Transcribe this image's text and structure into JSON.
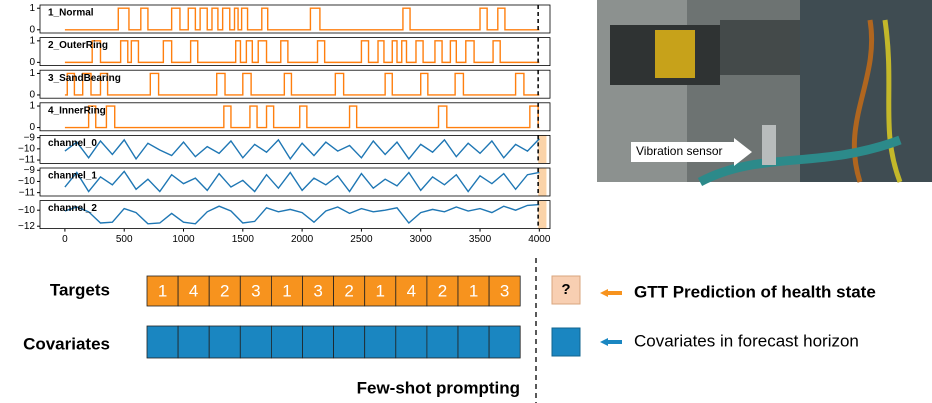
{
  "chart_data": [
    {
      "type": "line",
      "label": "1_Normal",
      "color": "#ff7f0e",
      "xlim": [
        -210,
        4090
      ],
      "ylim": [
        -0.15,
        1.15
      ],
      "yticks": [
        0,
        1
      ],
      "vline": 3990,
      "x": [
        0,
        450,
        450,
        540,
        540,
        640,
        640,
        700,
        700,
        900,
        900,
        970,
        970,
        1040,
        1040,
        1100,
        1100,
        1140,
        1140,
        1200,
        1200,
        1240,
        1240,
        1290,
        1290,
        1330,
        1330,
        1390,
        1390,
        1430,
        1430,
        1460,
        1460,
        1490,
        1490,
        1540,
        1540,
        1660,
        1660,
        1710,
        1710,
        2070,
        2070,
        2150,
        2150,
        2850,
        2850,
        2910,
        2910,
        3500,
        3500,
        3560,
        3560,
        3650,
        3650,
        3710,
        3710,
        4000
      ],
      "values": [
        0,
        0,
        1,
        1,
        0,
        0,
        1,
        1,
        0,
        0,
        1,
        1,
        0,
        0,
        1,
        1,
        0,
        0,
        1,
        1,
        0,
        0,
        1,
        1,
        0,
        0,
        1,
        1,
        0,
        0,
        1,
        1,
        0,
        0,
        1,
        1,
        0,
        0,
        1,
        1,
        0,
        0,
        1,
        1,
        0,
        0,
        1,
        1,
        0,
        0,
        1,
        1,
        0,
        0,
        1,
        1,
        0,
        0
      ]
    },
    {
      "type": "line",
      "label": "2_OuterRing",
      "color": "#ff7f0e",
      "xlim": [
        -210,
        4090
      ],
      "ylim": [
        -0.15,
        1.15
      ],
      "yticks": [
        0,
        1
      ],
      "vline": 3990,
      "x": [
        0,
        230,
        230,
        300,
        300,
        470,
        470,
        530,
        530,
        560,
        560,
        620,
        620,
        830,
        830,
        900,
        900,
        1060,
        1060,
        1120,
        1120,
        1440,
        1440,
        1480,
        1480,
        1530,
        1530,
        1580,
        1580,
        1630,
        1630,
        1700,
        1700,
        1820,
        1820,
        1880,
        1880,
        2130,
        2130,
        2190,
        2190,
        2500,
        2500,
        2560,
        2560,
        2640,
        2640,
        2690,
        2690,
        2760,
        2760,
        2800,
        2800,
        2840,
        2840,
        2880,
        2880,
        2960,
        2960,
        3020,
        3020,
        3120,
        3120,
        3180,
        3180,
        3250,
        3250,
        3300,
        3300,
        3380,
        3380,
        3450,
        3450,
        3610,
        3610,
        3670,
        3670,
        4000
      ],
      "values": [
        0,
        0,
        1,
        1,
        0,
        0,
        1,
        1,
        0,
        0,
        1,
        1,
        0,
        0,
        1,
        1,
        0,
        0,
        1,
        1,
        0,
        0,
        1,
        1,
        0,
        0,
        1,
        1,
        0,
        0,
        1,
        1,
        0,
        0,
        1,
        1,
        0,
        0,
        1,
        1,
        0,
        0,
        1,
        1,
        0,
        0,
        1,
        1,
        0,
        0,
        1,
        1,
        0,
        0,
        1,
        1,
        0,
        0,
        1,
        1,
        0,
        0,
        1,
        1,
        0,
        0,
        1,
        1,
        0,
        0,
        1,
        1,
        0,
        0,
        1,
        1,
        0,
        0
      ]
    },
    {
      "type": "line",
      "label": "3_SandBearing",
      "color": "#ff7f0e",
      "xlim": [
        -210,
        4090
      ],
      "ylim": [
        -0.15,
        1.15
      ],
      "yticks": [
        0,
        1
      ],
      "vline": 3990,
      "x": [
        0,
        20,
        20,
        80,
        80,
        150,
        150,
        220,
        220,
        300,
        300,
        360,
        360,
        720,
        720,
        790,
        790,
        1280,
        1280,
        1350,
        1350,
        1500,
        1500,
        1570,
        1570,
        1850,
        1850,
        1910,
        1910,
        2280,
        2280,
        2350,
        2350,
        2700,
        2700,
        2760,
        2760,
        3000,
        3000,
        3060,
        3060,
        3290,
        3290,
        3360,
        3360,
        3800,
        3800,
        3870,
        3870,
        4000
      ],
      "values": [
        0,
        0,
        1,
        1,
        0,
        0,
        1,
        1,
        0,
        0,
        1,
        1,
        0,
        0,
        1,
        1,
        0,
        0,
        1,
        1,
        0,
        0,
        1,
        1,
        0,
        0,
        1,
        1,
        0,
        0,
        1,
        1,
        0,
        0,
        1,
        1,
        0,
        0,
        1,
        1,
        0,
        0,
        1,
        1,
        0,
        0,
        1,
        1,
        0,
        0
      ]
    },
    {
      "type": "line",
      "label": "4_InnerRing",
      "color": "#ff7f0e",
      "xlim": [
        -210,
        4090
      ],
      "ylim": [
        -0.15,
        1.15
      ],
      "yticks": [
        0,
        1
      ],
      "vline": 3990,
      "x": [
        0,
        200,
        200,
        260,
        260,
        350,
        350,
        420,
        420,
        1340,
        1340,
        1400,
        1400,
        1560,
        1560,
        1620,
        1620,
        1700,
        1700,
        1760,
        1760,
        1980,
        1980,
        2040,
        2040,
        2400,
        2400,
        2460,
        2460,
        3150,
        3150,
        3220,
        3220,
        3920,
        3920,
        3990,
        3990,
        4000
      ],
      "values": [
        0,
        0,
        1,
        1,
        0,
        0,
        1,
        1,
        0,
        0,
        1,
        1,
        0,
        0,
        1,
        1,
        0,
        0,
        1,
        1,
        0,
        0,
        1,
        1,
        0,
        0,
        1,
        1,
        0,
        0,
        1,
        1,
        0,
        0,
        1,
        1,
        0,
        0
      ]
    },
    {
      "type": "line",
      "label": "channel_0",
      "color": "#1f77b4",
      "xlim": [
        -210,
        4090
      ],
      "ylim": [
        -11.3,
        -8.8
      ],
      "vline": 3990,
      "highlight_range": [
        3990,
        4060
      ],
      "yticks": [
        {
          "value": -9,
          "label": "−9"
        },
        {
          "value": -10,
          "label": "−10"
        },
        {
          "value": -11,
          "label": "−11"
        }
      ],
      "x": [
        0,
        100,
        200,
        300,
        400,
        500,
        600,
        700,
        800,
        900,
        1000,
        1100,
        1200,
        1300,
        1400,
        1500,
        1600,
        1700,
        1800,
        1900,
        2000,
        2100,
        2200,
        2300,
        2400,
        2500,
        2600,
        2700,
        2800,
        2900,
        3000,
        3100,
        3200,
        3300,
        3400,
        3500,
        3600,
        3700,
        3800,
        3900,
        4000
      ],
      "values": [
        -10.2,
        -9.4,
        -10.8,
        -9.3,
        -10.5,
        -9.2,
        -10.9,
        -9.5,
        -10.1,
        -10.6,
        -9.4,
        -10.7,
        -9.8,
        -10.4,
        -9.3,
        -10.8,
        -9.6,
        -10.3,
        -9.2,
        -10.9,
        -9.5,
        -10.6,
        -9.4,
        -10.2,
        -9.7,
        -10.8,
        -9.3,
        -10.5,
        -9.4,
        -10.9,
        -9.6,
        -10.3,
        -9.2,
        -10.7,
        -9.5,
        -10.4,
        -9.3,
        -10.8,
        -9.6,
        -10.2,
        -9.1
      ]
    },
    {
      "type": "line",
      "label": "channel_1",
      "color": "#1f77b4",
      "xlim": [
        -210,
        4090
      ],
      "ylim": [
        -11.3,
        -8.8
      ],
      "vline": 3990,
      "highlight_range": [
        3990,
        4060
      ],
      "yticks": [
        {
          "value": -9,
          "label": "−9"
        },
        {
          "value": -10,
          "label": "−10"
        },
        {
          "value": -11,
          "label": "−11"
        }
      ],
      "x": [
        0,
        100,
        200,
        300,
        400,
        500,
        600,
        700,
        800,
        900,
        1000,
        1100,
        1200,
        1300,
        1400,
        1500,
        1600,
        1700,
        1800,
        1900,
        2000,
        2100,
        2200,
        2300,
        2400,
        2500,
        2600,
        2700,
        2800,
        2900,
        3000,
        3100,
        3200,
        3300,
        3400,
        3500,
        3600,
        3700,
        3800,
        3900,
        4000
      ],
      "values": [
        -10.5,
        -9.2,
        -10.9,
        -9.6,
        -10.3,
        -9.1,
        -10.7,
        -9.8,
        -10.9,
        -9.4,
        -10.2,
        -9.7,
        -10.8,
        -9.3,
        -10.5,
        -9.9,
        -10.9,
        -9.4,
        -10.6,
        -9.2,
        -10.8,
        -9.7,
        -10.3,
        -9.5,
        -10.9,
        -9.3,
        -10.6,
        -9.8,
        -10.4,
        -9.2,
        -10.8,
        -9.6,
        -10.3,
        -9.4,
        -10.9,
        -9.5,
        -10.2,
        -9.3,
        -10.7,
        -9.4,
        -9.2
      ]
    },
    {
      "type": "line",
      "label": "channel_2",
      "color": "#1f77b4",
      "xlim": [
        -210,
        4090
      ],
      "ylim": [
        -12.3,
        -8.8
      ],
      "vline": 3990,
      "highlight_range": [
        3990,
        4060
      ],
      "yticks": [
        {
          "value": -10,
          "label": "−10"
        },
        {
          "value": -12,
          "label": "−12"
        }
      ],
      "xticks": [
        0,
        500,
        1000,
        1500,
        2000,
        2500,
        3000,
        3500,
        4000
      ],
      "x": [
        0,
        100,
        200,
        300,
        400,
        500,
        600,
        700,
        800,
        900,
        1000,
        1100,
        1200,
        1300,
        1400,
        1500,
        1600,
        1700,
        1800,
        1900,
        2000,
        2100,
        2200,
        2300,
        2400,
        2500,
        2600,
        2700,
        2800,
        2900,
        3000,
        3100,
        3200,
        3300,
        3400,
        3500,
        3600,
        3700,
        3800,
        3900,
        4000
      ],
      "values": [
        -10.1,
        -9.6,
        -10.2,
        -11.6,
        -11.5,
        -9.8,
        -10.3,
        -11.7,
        -11.6,
        -10.4,
        -11.5,
        -11.7,
        -10.2,
        -9.5,
        -10.1,
        -11.6,
        -11.4,
        -9.7,
        -10.2,
        -9.9,
        -10.3,
        -11.5,
        -10.1,
        -9.6,
        -10.4,
        -9.8,
        -10.2,
        -10.0,
        -9.7,
        -11.6,
        -10.3,
        -9.9,
        -10.2,
        -9.6,
        -10.1,
        -9.8,
        -10.3,
        -9.5,
        -10.0,
        -9.4,
        -9.3
      ]
    }
  ],
  "photo": {
    "caption": "Vibration sensor"
  },
  "diagram": {
    "targets_label": "Targets",
    "covariates_label": "Covariates",
    "targets": [
      1,
      4,
      2,
      3,
      1,
      3,
      2,
      1,
      4,
      2,
      1,
      3
    ],
    "query": "?",
    "legend": [
      {
        "text": "GTT Prediction of health state"
      },
      {
        "text": "Covariates in forecast horizon"
      }
    ],
    "footer": "Few-shot prompting"
  }
}
